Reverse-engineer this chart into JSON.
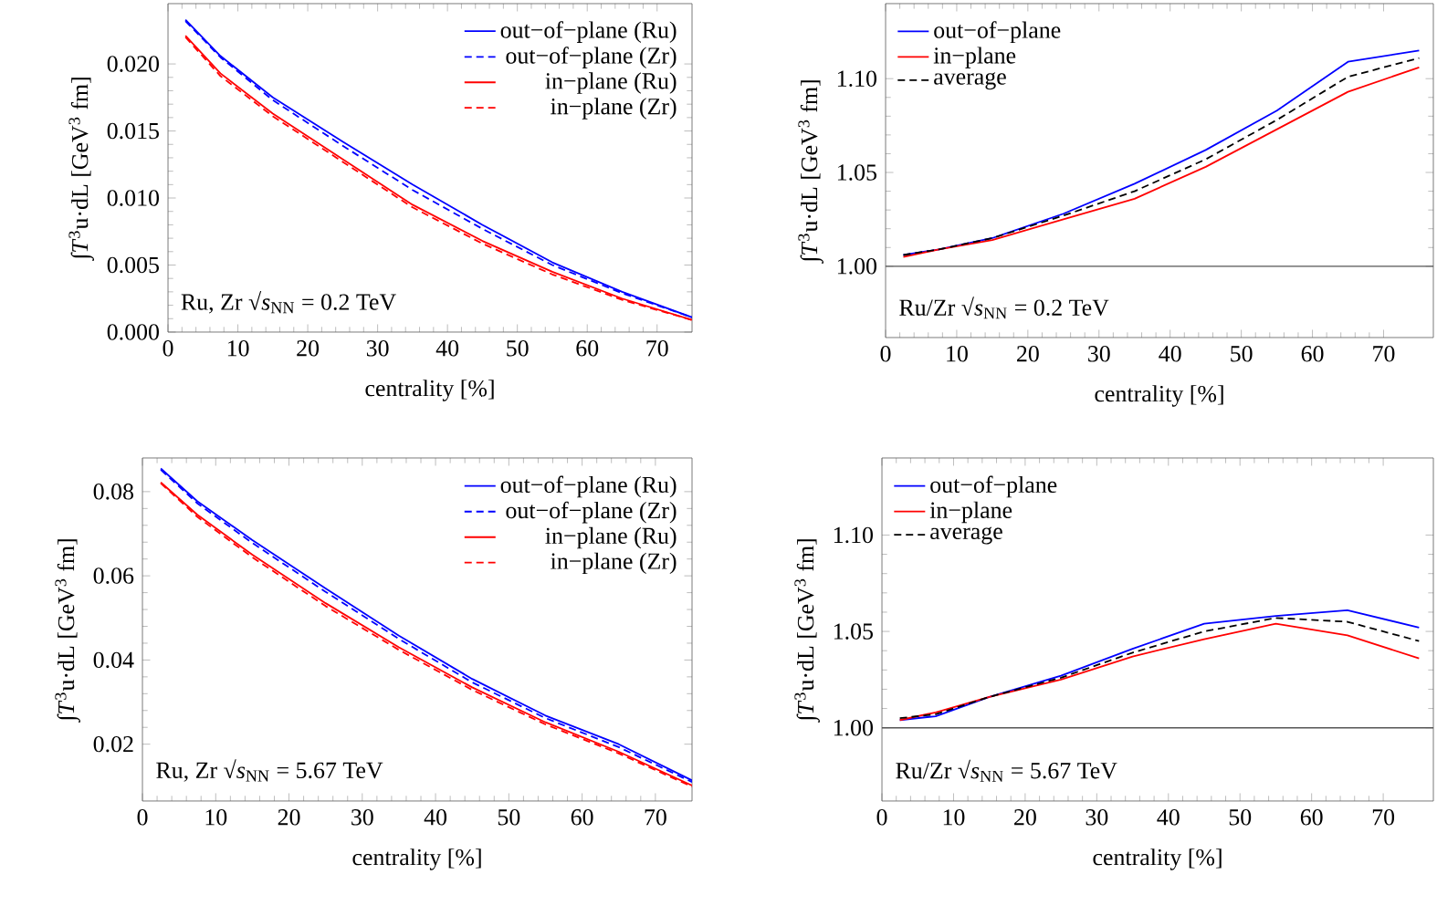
{
  "chart_data": [
    {
      "type": "line",
      "xlabel": "centrality [%]",
      "ylabel": "∫*T*$^{3}$u·dL [GeV$^{3}$ fm]",
      "xlim": [
        0,
        75
      ],
      "ylim": [
        0,
        0.0245
      ],
      "xticks": [
        0,
        10,
        20,
        30,
        40,
        50,
        60,
        70
      ],
      "yticks": [
        {
          "value": 0,
          "label": "0.000"
        },
        {
          "value": 0.005,
          "label": "0.005"
        },
        {
          "value": 0.01,
          "label": "0.010"
        },
        {
          "value": 0.015,
          "label": "0.015"
        },
        {
          "value": 0.02,
          "label": "0.020"
        }
      ],
      "legend": "top right",
      "annotations": [
        "Ru, Zr √*s*$_{NN}$ = 0.2 TeV"
      ],
      "x": [
        2.5,
        7.5,
        15,
        25,
        35,
        45,
        55,
        65,
        75
      ],
      "series": [
        {
          "name": "out−of−plane (Ru)",
          "color": "#0000ff",
          "line_style": "solid",
          "values": [
            0.0233,
            0.0206,
            0.0175,
            0.0142,
            0.011,
            0.008,
            0.0052,
            0.003,
            0.0011
          ]
        },
        {
          "name": "out−of−plane (Zr)",
          "color": "#0000ff",
          "line_style": "dashed",
          "values": [
            0.0232,
            0.0205,
            0.0173,
            0.0139,
            0.0106,
            0.0077,
            0.005,
            0.0029,
            0.0011
          ]
        },
        {
          "name": "in−plane (Ru)",
          "color": "#ff0000",
          "line_style": "solid",
          "values": [
            0.0221,
            0.0193,
            0.0163,
            0.0129,
            0.0095,
            0.0068,
            0.0045,
            0.0025,
            0.0009
          ]
        },
        {
          "name": "in−plane (Zr)",
          "color": "#ff0000",
          "line_style": "dashed",
          "values": [
            0.022,
            0.0191,
            0.0161,
            0.0127,
            0.0093,
            0.0066,
            0.0043,
            0.0024,
            0.0009
          ]
        }
      ]
    },
    {
      "type": "line",
      "xlabel": "centrality [%]",
      "ylabel": "∫*T*$^{3}$u·dL [GeV$^{3}$ fm]",
      "xlim": [
        0,
        77
      ],
      "ylim": [
        0.962,
        1.14
      ],
      "xticks": [
        0,
        10,
        20,
        30,
        40,
        50,
        60,
        70
      ],
      "yticks": [
        {
          "value": 1,
          "label": "1.00"
        },
        1.05,
        {
          "value": 1.1,
          "label": "1.10"
        }
      ],
      "legend": "top left",
      "annotations": [
        "Ru/Zr √*s*$_{NN}$ = 0.2 TeV"
      ],
      "ref_lines": [
        {
          "axis": "y",
          "value": 1,
          "color": "#555555"
        }
      ],
      "x": [
        2.5,
        7.5,
        15,
        25,
        35,
        45,
        55,
        65,
        75
      ],
      "series": [
        {
          "name": "out−of−plane",
          "color": "#0000ff",
          "line_style": "solid",
          "values": [
            1.006,
            1.009,
            1.015,
            1.028,
            1.044,
            1.062,
            1.083,
            1.109,
            1.115
          ]
        },
        {
          "name": "in−plane",
          "color": "#ff0000",
          "line_style": "solid",
          "values": [
            1.005,
            1.009,
            1.014,
            1.025,
            1.036,
            1.053,
            1.073,
            1.093,
            1.106
          ]
        },
        {
          "name": "average",
          "color": "#000000",
          "line_style": "dashed",
          "values": [
            1.006,
            1.009,
            1.015,
            1.027,
            1.04,
            1.057,
            1.078,
            1.101,
            1.111
          ]
        }
      ]
    },
    {
      "type": "line",
      "xlabel": "centrality [%]",
      "ylabel": "∫*T*$^{3}$u·dL [GeV$^{3}$ fm]",
      "xlim": [
        0,
        75
      ],
      "ylim": [
        0.0065,
        0.088
      ],
      "xticks": [
        0,
        10,
        20,
        30,
        40,
        50,
        60,
        70
      ],
      "yticks": [
        0.02,
        0.04,
        0.06,
        0.08
      ],
      "legend": "top right",
      "annotations": [
        "Ru, Zr √*s*$_{NN}$ = 5.67 TeV"
      ],
      "x": [
        2.5,
        7.5,
        15,
        25,
        35,
        45,
        55,
        65,
        75
      ],
      "series": [
        {
          "name": "out−of−plane (Ru)",
          "color": "#0000ff",
          "line_style": "solid",
          "values": [
            0.0855,
            0.0777,
            0.0685,
            0.057,
            0.0458,
            0.0355,
            0.0268,
            0.02,
            0.0114
          ]
        },
        {
          "name": "out−of−plane (Zr)",
          "color": "#0000ff",
          "line_style": "dashed",
          "values": [
            0.0852,
            0.0772,
            0.0678,
            0.0562,
            0.045,
            0.0347,
            0.0262,
            0.0193,
            0.011
          ]
        },
        {
          "name": "in−plane (Ru)",
          "color": "#ff0000",
          "line_style": "solid",
          "values": [
            0.0822,
            0.0745,
            0.065,
            0.0535,
            0.043,
            0.0335,
            0.0252,
            0.0182,
            0.0102
          ]
        },
        {
          "name": "in−plane (Zr)",
          "color": "#ff0000",
          "line_style": "dashed",
          "values": [
            0.082,
            0.074,
            0.0644,
            0.0528,
            0.0424,
            0.0329,
            0.0247,
            0.0178,
            0.0099
          ]
        }
      ]
    },
    {
      "type": "line",
      "xlabel": "centrality [%]",
      "ylabel": "∫*T*$^{3}$u·dL [GeV$^{3}$ fm]",
      "xlim": [
        0,
        77
      ],
      "ylim": [
        0.962,
        1.14
      ],
      "xticks": [
        0,
        10,
        20,
        30,
        40,
        50,
        60,
        70
      ],
      "yticks": [
        {
          "value": 1,
          "label": "1.00"
        },
        1.05,
        {
          "value": 1.1,
          "label": "1.10"
        }
      ],
      "legend": "top left",
      "annotations": [
        "Ru/Zr √*s*$_{NN}$ = 5.67 TeV"
      ],
      "ref_lines": [
        {
          "axis": "y",
          "value": 1,
          "color": "#555555"
        }
      ],
      "x": [
        2.5,
        7.5,
        15,
        25,
        35,
        45,
        55,
        65,
        75
      ],
      "series": [
        {
          "name": "out−of−plane",
          "color": "#0000ff",
          "line_style": "solid",
          "values": [
            1.004,
            1.006,
            1.016,
            1.027,
            1.041,
            1.054,
            1.058,
            1.061,
            1.052
          ]
        },
        {
          "name": "in−plane",
          "color": "#ff0000",
          "line_style": "solid",
          "values": [
            1.004,
            1.008,
            1.016,
            1.025,
            1.037,
            1.046,
            1.054,
            1.048,
            1.036
          ]
        },
        {
          "name": "average",
          "color": "#000000",
          "line_style": "dashed",
          "values": [
            1.005,
            1.007,
            1.016,
            1.026,
            1.039,
            1.05,
            1.057,
            1.055,
            1.045
          ]
        }
      ]
    }
  ]
}
